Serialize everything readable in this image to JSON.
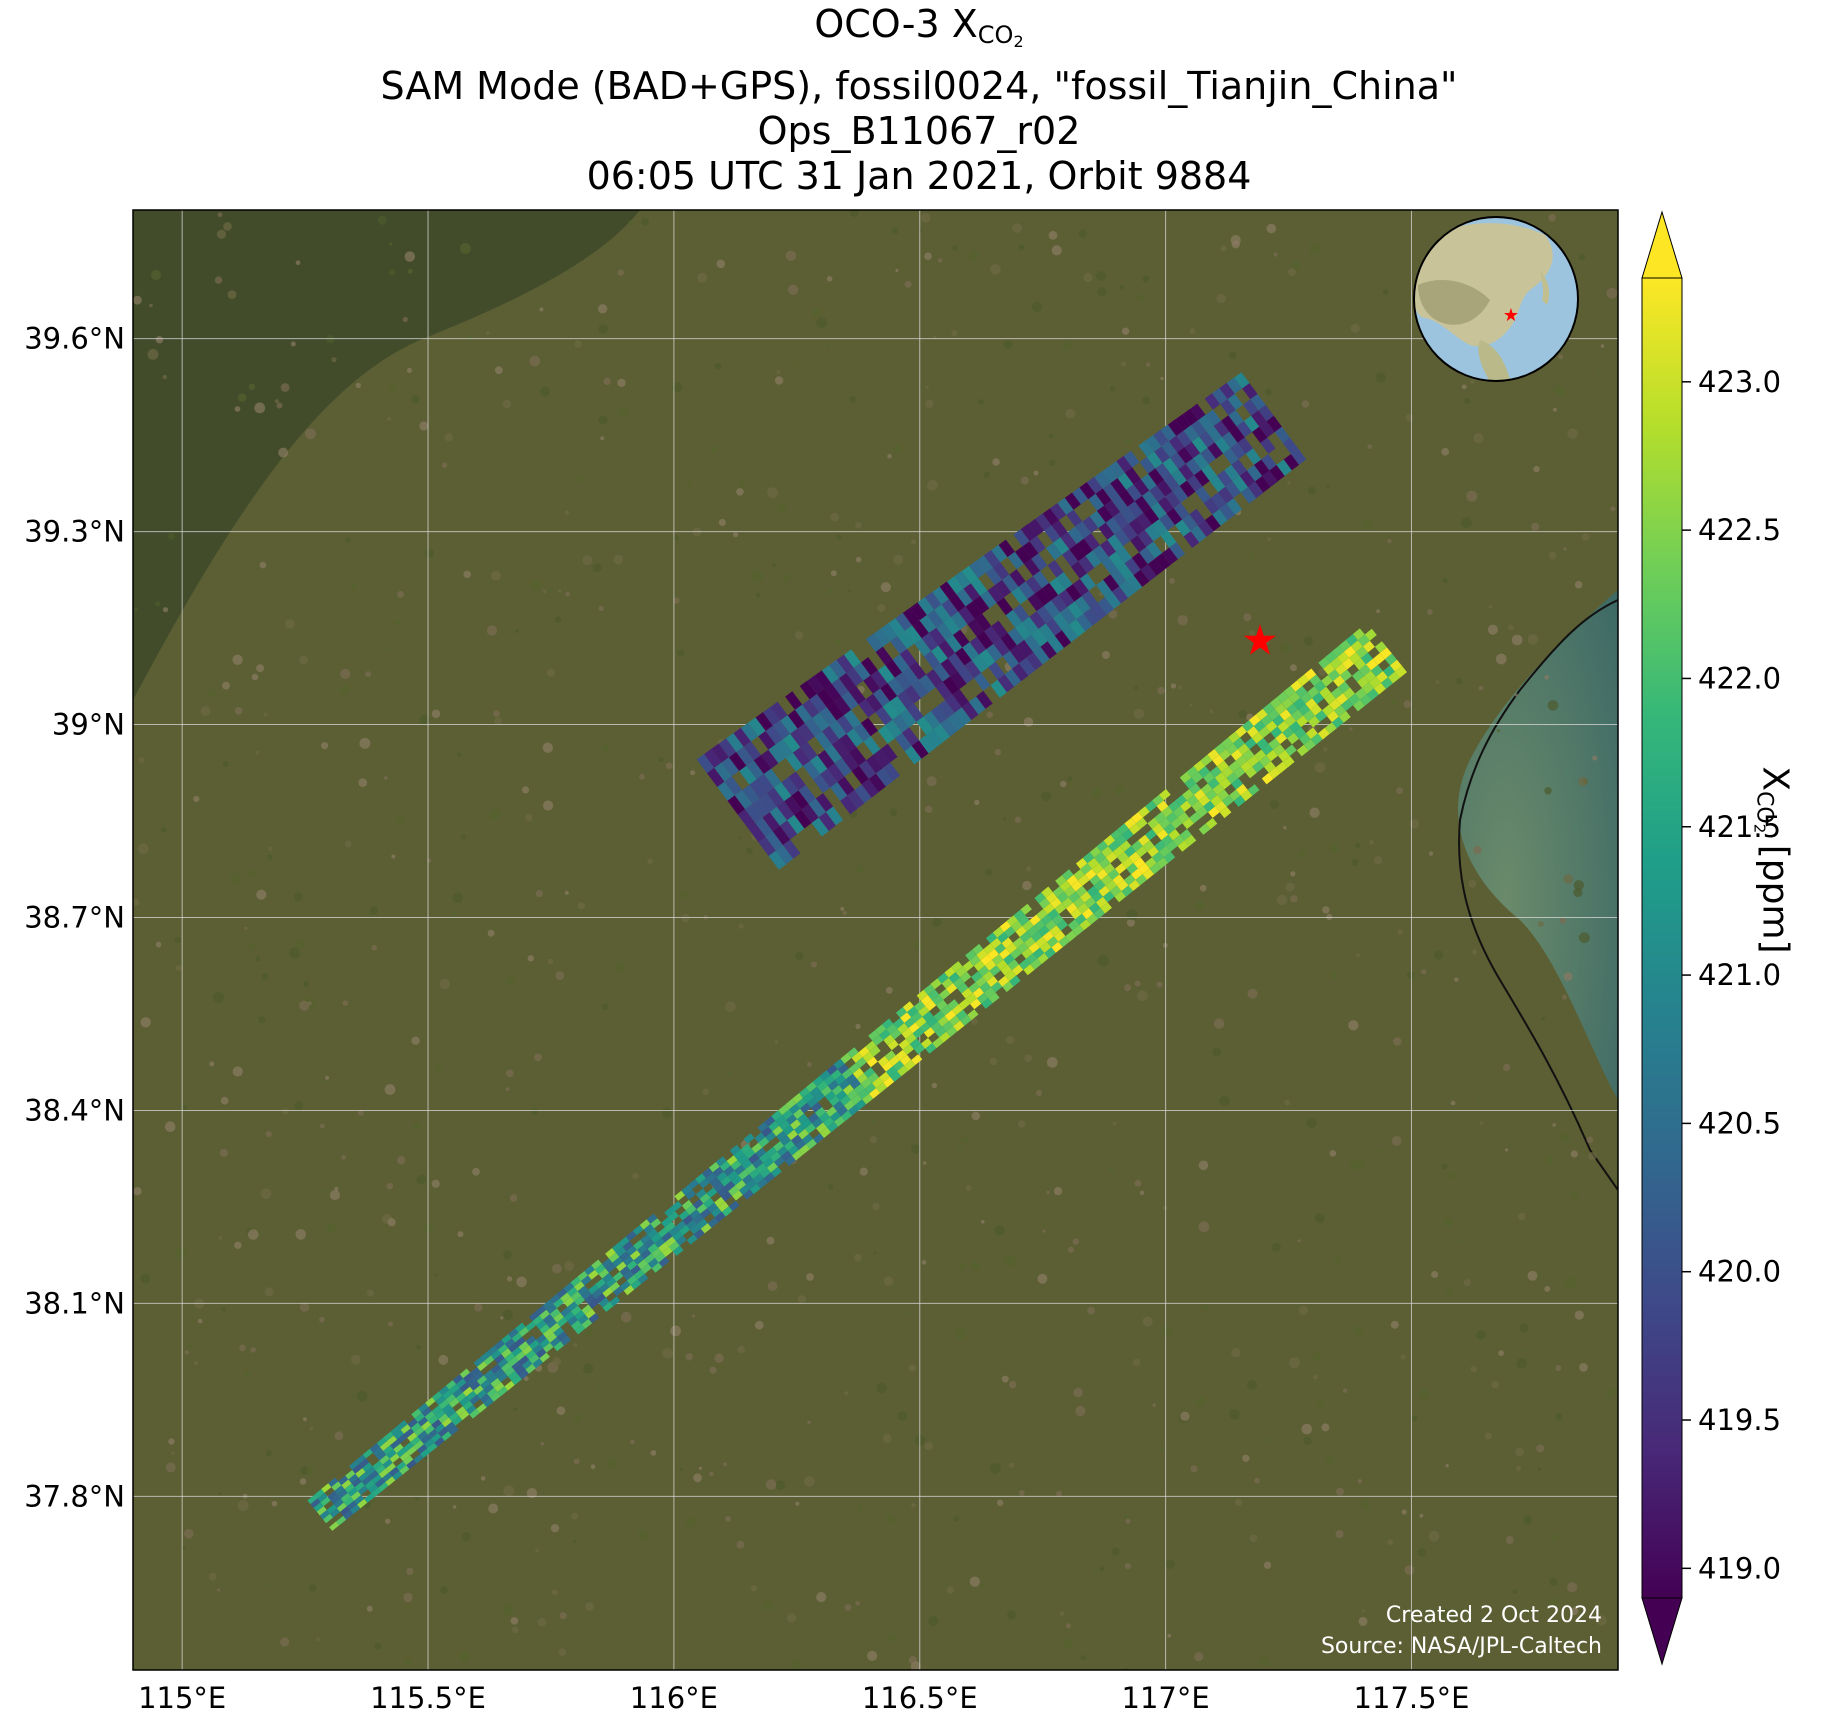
{
  "title": {
    "line1_prefix": "OCO-3 X",
    "line1_sub": "CO",
    "line1_subsub": "2",
    "line2": "SAM Mode (BAD+GPS), fossil0024, \"fossil_Tianjin_China\"",
    "line3": "Ops_B11067_r02",
    "line4": "06:05 UTC 31 Jan 2021, Orbit 9884"
  },
  "map": {
    "extent": {
      "lon_min": 114.9,
      "lon_max": 117.92,
      "lat_min": 37.53,
      "lat_max": 39.8
    },
    "lon_ticks": [
      {
        "value": 115.0,
        "label": "115°E"
      },
      {
        "value": 115.5,
        "label": "115.5°E"
      },
      {
        "value": 116.0,
        "label": "116°E"
      },
      {
        "value": 116.5,
        "label": "116.5°E"
      },
      {
        "value": 117.0,
        "label": "117°E"
      },
      {
        "value": 117.5,
        "label": "117.5°E"
      }
    ],
    "lat_ticks": [
      {
        "value": 39.6,
        "label": "39.6°N"
      },
      {
        "value": 39.3,
        "label": "39.3°N"
      },
      {
        "value": 39.0,
        "label": "39°N"
      },
      {
        "value": 38.7,
        "label": "38.7°N"
      },
      {
        "value": 38.4,
        "label": "38.4°N"
      },
      {
        "value": 38.1,
        "label": "38.1°N"
      },
      {
        "value": 37.8,
        "label": "37.8°N"
      }
    ],
    "grid": true,
    "basemap": "satellite imagery",
    "target": {
      "name": "fossil_Tianjin_China",
      "lon": 117.17,
      "lat": 39.14,
      "marker": "red-star-icon"
    },
    "swaths": [
      {
        "name": "first-pass",
        "start": [
          116.13,
          38.86
        ],
        "end": [
          117.22,
          39.48
        ],
        "start_width": 0.28,
        "end_width": 0.22,
        "mean_xco2": 419.9,
        "spread": 1.2
      },
      {
        "name": "second-pass",
        "start": [
          115.28,
          37.77
        ],
        "end": [
          117.45,
          39.12
        ],
        "start_width": 0.08,
        "end_width": 0.13,
        "mean_xco2": 421.4,
        "spread": 1.3
      }
    ],
    "credit_line1": "Created 2 Oct 2024",
    "credit_line2": "Source: NASA/JPL-Caltech",
    "inset": {
      "content": "globe centered on East Asia",
      "marker": "red-star-icon"
    }
  },
  "colorbar": {
    "label_prefix": "X",
    "label_sub": "CO",
    "label_subsub": "2",
    "label_suffix": " [ppm]",
    "min": 418.9,
    "max": 423.35,
    "extend": "both",
    "colormap": "viridis",
    "colors": [
      "#440154",
      "#482878",
      "#3e4989",
      "#31688e",
      "#26828e",
      "#1f9e89",
      "#35b779",
      "#6ece58",
      "#b5de2b",
      "#fde725"
    ],
    "ticks": [
      {
        "value": 419.0,
        "label": "419.0"
      },
      {
        "value": 419.5,
        "label": "419.5"
      },
      {
        "value": 420.0,
        "label": "420.0"
      },
      {
        "value": 420.5,
        "label": "420.5"
      },
      {
        "value": 421.0,
        "label": "421.0"
      },
      {
        "value": 421.5,
        "label": "421.5"
      },
      {
        "value": 422.0,
        "label": "422.0"
      },
      {
        "value": 422.5,
        "label": "422.5"
      },
      {
        "value": 423.0,
        "label": "423.0"
      }
    ]
  }
}
